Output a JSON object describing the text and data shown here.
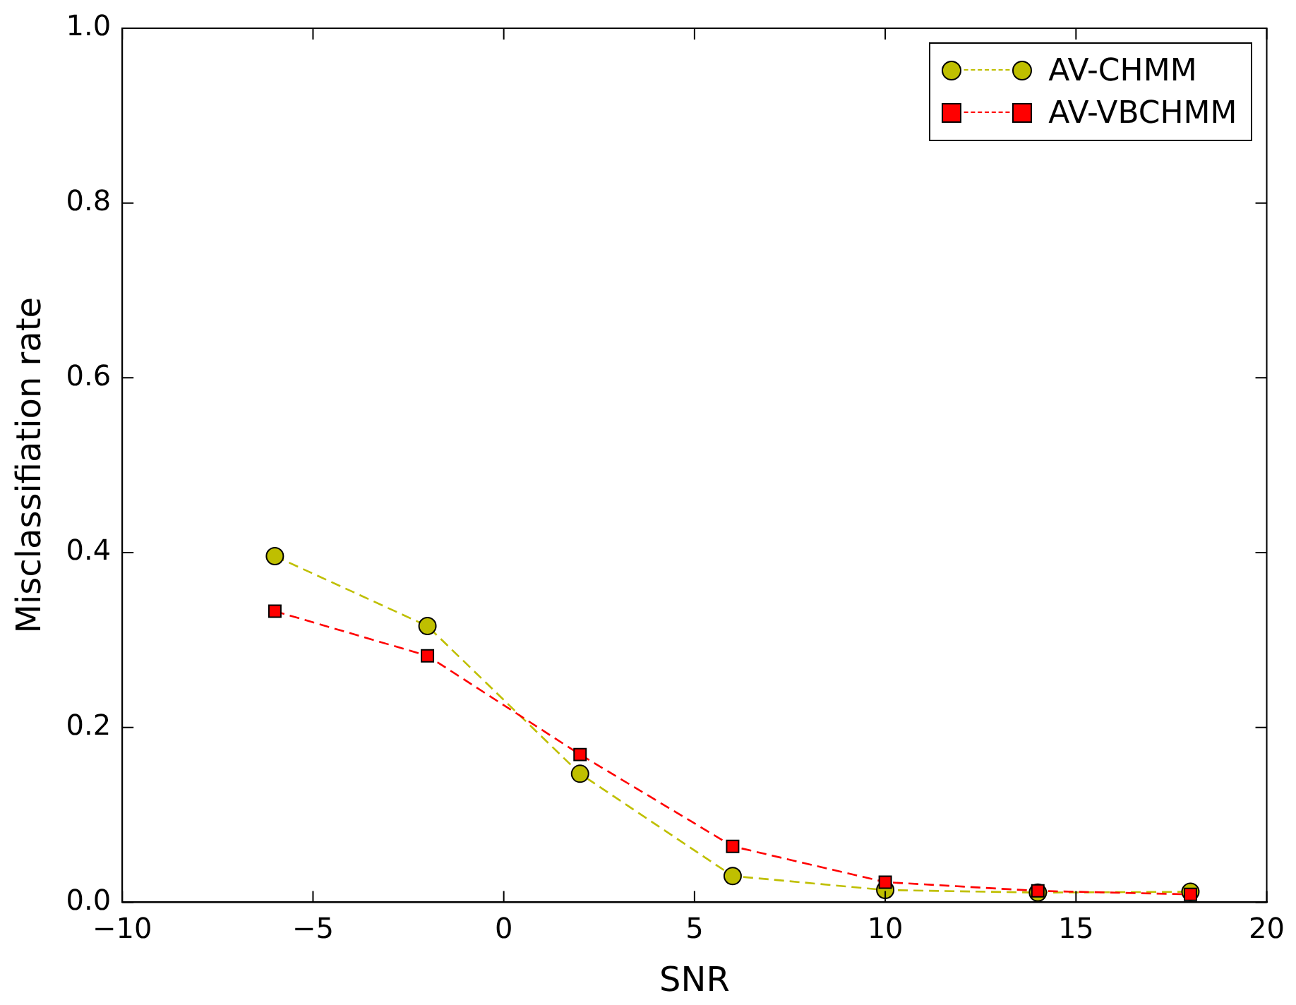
{
  "chart_data": {
    "type": "line",
    "xlabel": "SNR",
    "ylabel": "Misclassifiation rate",
    "x": [
      -6,
      -2,
      2,
      6,
      10,
      14,
      18
    ],
    "series": [
      {
        "name": "AV-CHMM",
        "color": "#bfbf00",
        "marker": "circle",
        "values": [
          0.396,
          0.316,
          0.147,
          0.03,
          0.014,
          0.011,
          0.012
        ]
      },
      {
        "name": "AV-VBCHMM",
        "color": "#ff0000",
        "marker": "square",
        "values": [
          0.333,
          0.282,
          0.169,
          0.064,
          0.023,
          0.013,
          0.009
        ]
      }
    ],
    "line_style": "dashed",
    "grid": false,
    "legend": "top right",
    "xlim": [
      -10,
      20
    ],
    "xticks": [
      {
        "value": -10,
        "label": "−10"
      },
      {
        "value": -5,
        "label": "−5"
      },
      0,
      5,
      10,
      15,
      20
    ],
    "ylim": [
      0,
      1
    ],
    "yticks": [
      {
        "value": 0,
        "label": "0.0"
      },
      0.2,
      0.4,
      0.6,
      0.8,
      {
        "value": 1,
        "label": "1.0"
      }
    ]
  }
}
